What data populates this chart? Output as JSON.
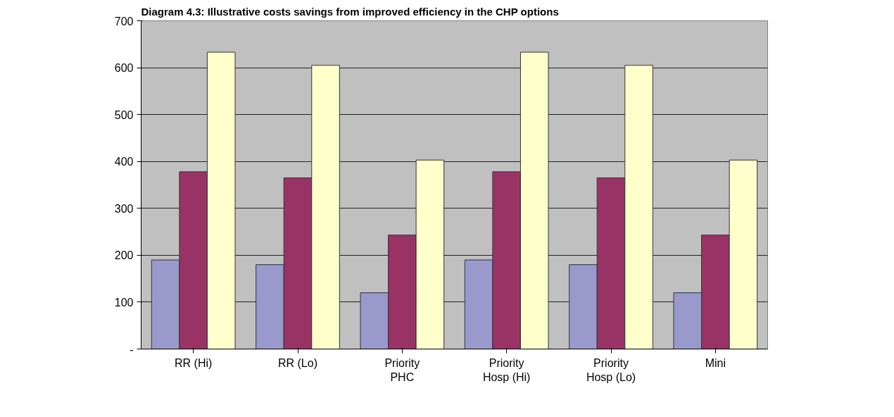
{
  "chart_data": {
    "type": "bar",
    "title": "Diagram 4.3: Illustrative costs savings from improved efficiency in the CHP options",
    "categories": [
      "RR (Hi)",
      "RR (Lo)",
      "Priority PHC",
      "Priority Hosp (Hi)",
      "Priority Hosp (Lo)",
      "Mini"
    ],
    "series": [
      {
        "color": "#9999cc",
        "values": [
          190,
          180,
          120,
          190,
          180,
          120
        ]
      },
      {
        "color": "#993366",
        "values": [
          378,
          365,
          243,
          378,
          365,
          243
        ]
      },
      {
        "color": "#ffffcc",
        "values": [
          633,
          605,
          403,
          633,
          605,
          403
        ]
      }
    ],
    "ylim": [
      0,
      700
    ],
    "yticks": [
      {
        "value": 0,
        "label": "-"
      },
      100,
      200,
      300,
      400,
      500,
      600,
      700
    ],
    "grid": "y"
  }
}
